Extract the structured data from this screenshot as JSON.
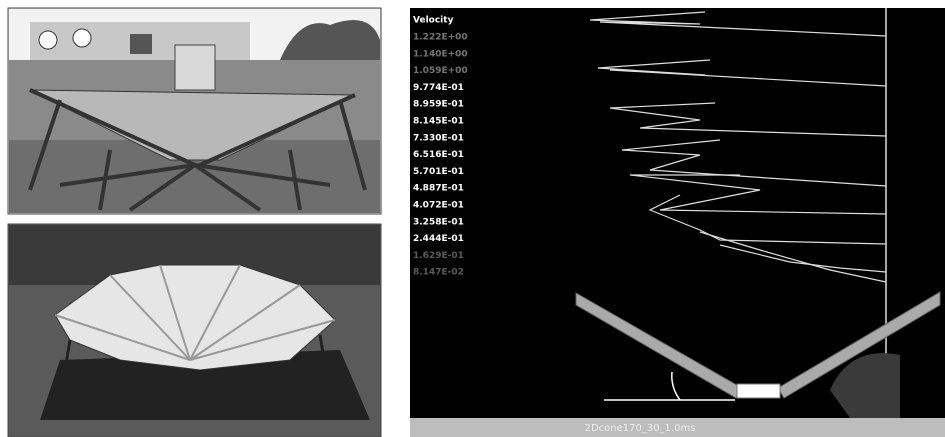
{
  "legend": {
    "title": "Velocity",
    "values": [
      "1.222E+00",
      "1.140E+00",
      "1.059E+00",
      "9.774E-01",
      "8.959E-01",
      "8.145E-01",
      "7.330E-01",
      "6.516E-01",
      "5.701E-01",
      "4.887E-01",
      "4.072E-01",
      "3.258E-01",
      "2.444E-01",
      "1.629E-01",
      "8.147E-02"
    ]
  },
  "status_bar": {
    "label": "2Dcone170_30_1.0ms"
  }
}
